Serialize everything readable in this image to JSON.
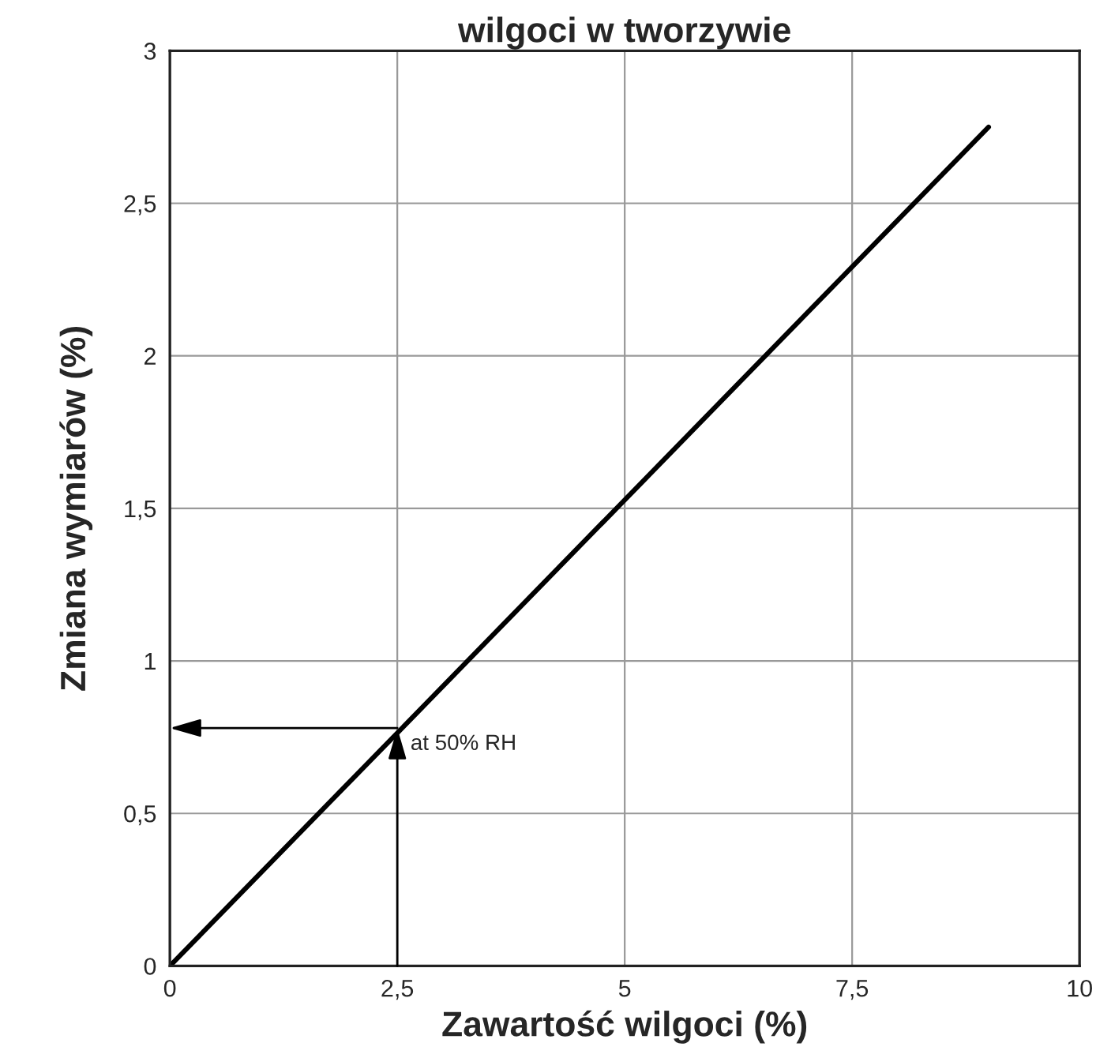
{
  "chart_data": {
    "type": "line",
    "title": "wilgoci w tworzywie",
    "xlabel": "Zawartość wilgoci (%)",
    "ylabel": "Zmiana wymiarów (%)",
    "x": [
      0,
      9
    ],
    "series": [
      {
        "color": "#000000",
        "values": [
          0,
          2.75
        ]
      }
    ],
    "xlim": [
      0,
      10
    ],
    "ylim": [
      0,
      3
    ],
    "xticks": [
      0,
      {
        "value": 2.5,
        "label": "2,5"
      },
      5,
      {
        "value": 7.5,
        "label": "7,5"
      },
      10
    ],
    "yticks": [
      0,
      {
        "value": 0.5,
        "label": "0,5"
      },
      1,
      {
        "value": 1.5,
        "label": "1,5"
      },
      2,
      {
        "value": 2.5,
        "label": "2,5"
      },
      3
    ],
    "grid": true,
    "annotations": [
      {
        "text": "at 50% RH",
        "x": 2.5,
        "y": 0.78
      }
    ]
  }
}
